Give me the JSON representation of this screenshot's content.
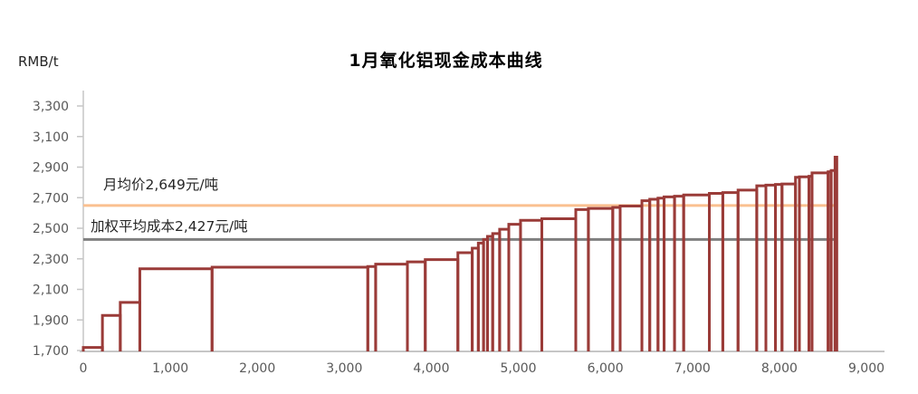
{
  "header": {
    "unit_label": "RMB/t",
    "title": "1月氧化铝现金成本曲线"
  },
  "chart_data": {
    "type": "step-cost-curve",
    "title": "1月氧化铝现金成本曲线",
    "unit": "RMB/t",
    "grid": false,
    "legend": false,
    "x_axis": {
      "min": 0,
      "max": 9000,
      "tick_step": 1000,
      "tick_labels": [
        "0",
        "1,000",
        "2,000",
        "3,000",
        "4,000",
        "5,000",
        "6,000",
        "7,000",
        "8,000",
        "9,000"
      ]
    },
    "y_axis": {
      "min": 1700,
      "max": 3300,
      "tick_step": 200,
      "tick_labels": [
        "1,700",
        "1,900",
        "2,100",
        "2,300",
        "2,500",
        "2,700",
        "2,900",
        "3,100",
        "3,300"
      ]
    },
    "reference_lines": [
      {
        "id": "monthly-average-price",
        "label": "月均价2,649元/吨",
        "value": 2649,
        "color": "#FAC090"
      },
      {
        "id": "weighted-average-cost",
        "label": "加权平均成本2,427元/吨",
        "value": 2427,
        "color": "#7F7F7F"
      }
    ],
    "series": {
      "name": "现金成本曲线",
      "color": "#9A3B38",
      "steps": [
        [
          0,
          220,
          1720
        ],
        [
          220,
          425,
          1930
        ],
        [
          425,
          650,
          2015
        ],
        [
          650,
          1480,
          2235
        ],
        [
          1480,
          3270,
          2245
        ],
        [
          3270,
          3360,
          2250
        ],
        [
          3360,
          3725,
          2265
        ],
        [
          3725,
          3930,
          2280
        ],
        [
          3930,
          4305,
          2295
        ],
        [
          4305,
          4470,
          2340
        ],
        [
          4470,
          4540,
          2370
        ],
        [
          4540,
          4600,
          2403
        ],
        [
          4600,
          4645,
          2427
        ],
        [
          4645,
          4705,
          2447
        ],
        [
          4705,
          4785,
          2465
        ],
        [
          4785,
          4890,
          2493
        ],
        [
          4890,
          5025,
          2526
        ],
        [
          5025,
          5270,
          2552
        ],
        [
          5270,
          5660,
          2562
        ],
        [
          5660,
          5805,
          2622
        ],
        [
          5805,
          6085,
          2630
        ],
        [
          6085,
          6170,
          2636
        ],
        [
          6170,
          6420,
          2645
        ],
        [
          6420,
          6510,
          2680
        ],
        [
          6510,
          6605,
          2690
        ],
        [
          6605,
          6675,
          2697
        ],
        [
          6675,
          6795,
          2705
        ],
        [
          6795,
          6900,
          2710
        ],
        [
          6900,
          7195,
          2718
        ],
        [
          7195,
          7350,
          2728
        ],
        [
          7350,
          7525,
          2733
        ],
        [
          7525,
          7740,
          2750
        ],
        [
          7740,
          7845,
          2778
        ],
        [
          7845,
          7955,
          2782
        ],
        [
          7955,
          8030,
          2787
        ],
        [
          8030,
          8185,
          2790
        ],
        [
          8185,
          8230,
          2833
        ],
        [
          8230,
          8340,
          2836
        ],
        [
          8340,
          8375,
          2840
        ],
        [
          8375,
          8560,
          2862
        ],
        [
          8560,
          8595,
          2870
        ],
        [
          8595,
          8640,
          2878
        ],
        [
          8640,
          8660,
          2965
        ]
      ]
    }
  }
}
